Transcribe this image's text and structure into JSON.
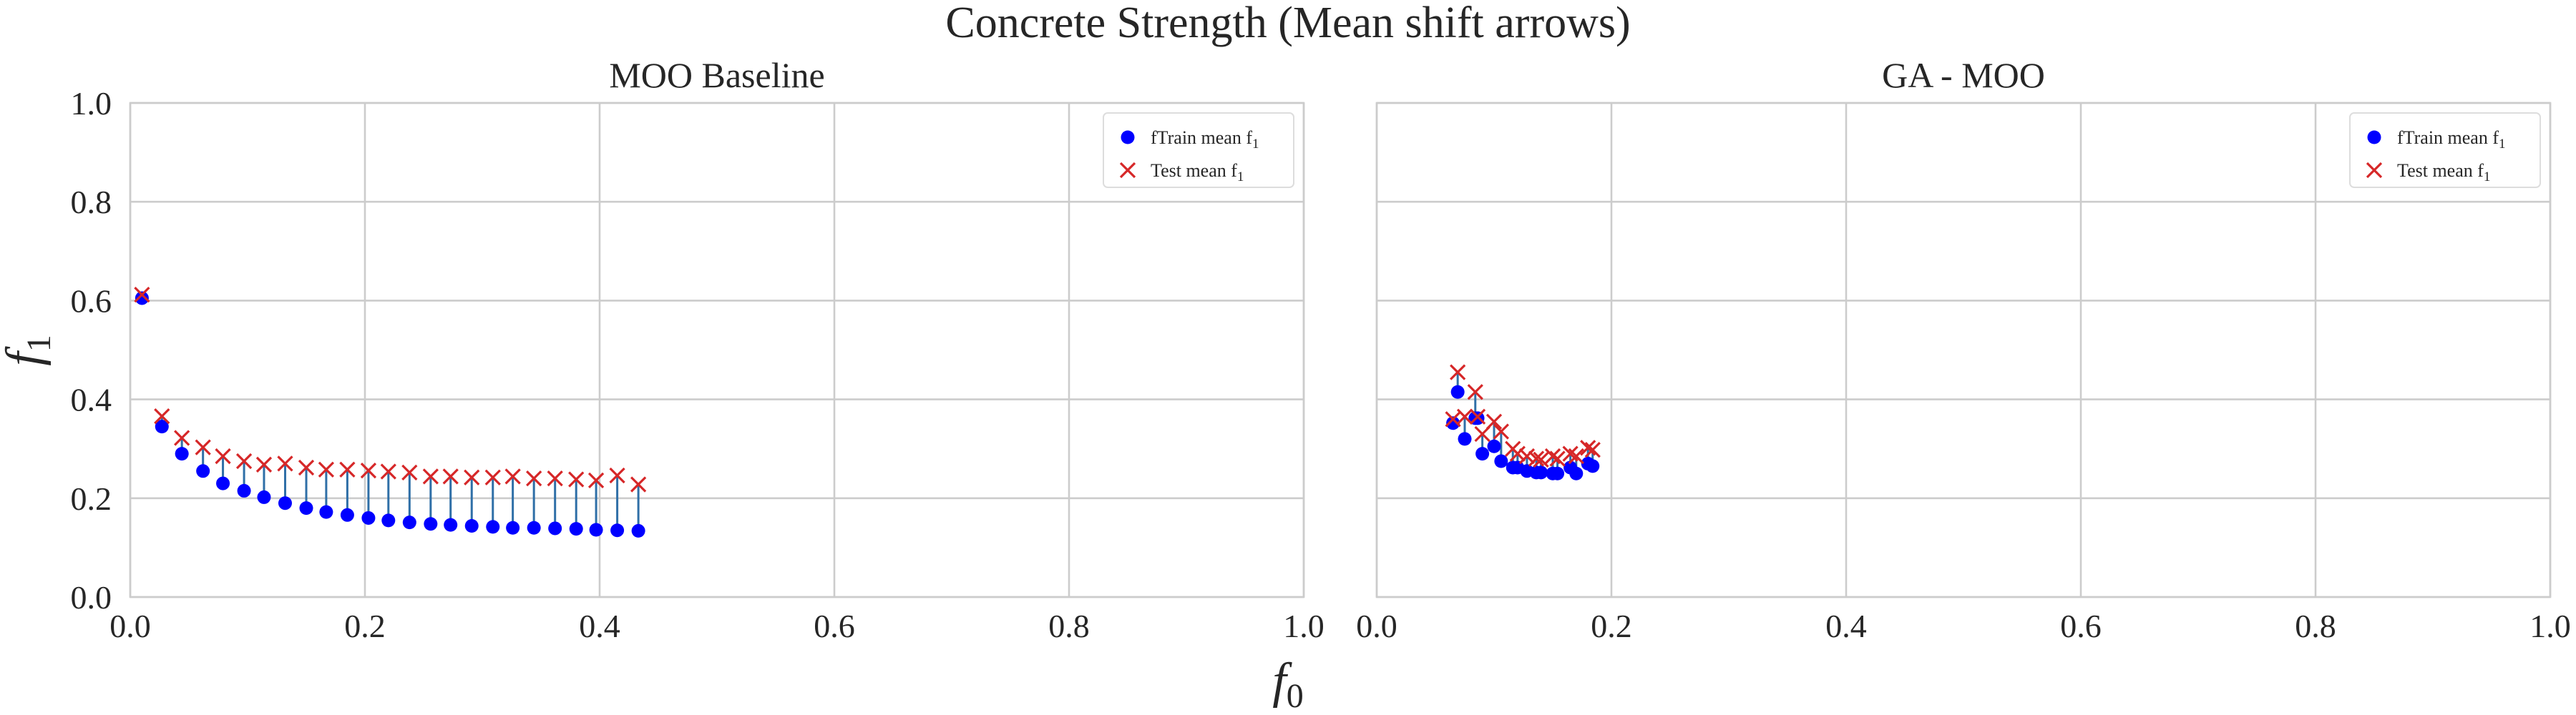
{
  "figure": {
    "title": "Concrete Strength (Mean shift arrows)",
    "xlabel_base": "f",
    "xlabel_sub": "0",
    "ylabel_base": "f",
    "ylabel_sub": "1"
  },
  "colors": {
    "train": "#0000ff",
    "test": "#d62728",
    "arrow": "#2f6fa7",
    "grid": "#cccccc"
  },
  "chart_data": [
    {
      "type": "scatter",
      "title": "MOO Baseline",
      "xlim": [
        0,
        1
      ],
      "ylim": [
        0,
        1
      ],
      "x_ticks": [
        "0.0",
        "0.2",
        "0.4",
        "0.6",
        "0.8",
        "1.0"
      ],
      "y_ticks": [
        "0.0",
        "0.2",
        "0.4",
        "0.6",
        "0.8",
        "1.0"
      ],
      "grid": true,
      "legend_placement": "top-right",
      "series": [
        {
          "name": "fTrain mean f1",
          "legend_base": "fTrain mean f",
          "legend_sub": "1",
          "marker": "circle",
          "x": [
            0.01,
            0.027,
            0.044,
            0.062,
            0.079,
            0.097,
            0.114,
            0.132,
            0.15,
            0.167,
            0.185,
            0.203,
            0.22,
            0.238,
            0.256,
            0.273,
            0.291,
            0.309,
            0.326,
            0.344,
            0.362,
            0.38,
            0.397,
            0.415,
            0.433
          ],
          "y": [
            0.605,
            0.345,
            0.29,
            0.255,
            0.23,
            0.215,
            0.202,
            0.19,
            0.18,
            0.172,
            0.166,
            0.16,
            0.155,
            0.151,
            0.148,
            0.146,
            0.144,
            0.142,
            0.14,
            0.14,
            0.139,
            0.138,
            0.136,
            0.135,
            0.134
          ]
        },
        {
          "name": "Test mean f1",
          "legend_base": "Test mean f",
          "legend_sub": "1",
          "marker": "x",
          "x": [
            0.01,
            0.027,
            0.044,
            0.062,
            0.079,
            0.097,
            0.114,
            0.132,
            0.15,
            0.167,
            0.185,
            0.203,
            0.22,
            0.238,
            0.256,
            0.273,
            0.291,
            0.309,
            0.326,
            0.344,
            0.362,
            0.38,
            0.397,
            0.415,
            0.433
          ],
          "y": [
            0.612,
            0.366,
            0.322,
            0.303,
            0.285,
            0.275,
            0.268,
            0.27,
            0.262,
            0.258,
            0.258,
            0.256,
            0.254,
            0.252,
            0.244,
            0.244,
            0.242,
            0.242,
            0.244,
            0.24,
            0.24,
            0.238,
            0.236,
            0.246,
            0.228
          ]
        }
      ]
    },
    {
      "type": "scatter",
      "title": "GA - MOO",
      "xlim": [
        0,
        1
      ],
      "ylim": [
        0,
        1
      ],
      "x_ticks": [
        "0.0",
        "0.2",
        "0.4",
        "0.6",
        "0.8",
        "1.0"
      ],
      "y_ticks": [
        "0.0",
        "0.2",
        "0.4",
        "0.6",
        "0.8",
        "1.0"
      ],
      "grid": true,
      "legend_placement": "top-right",
      "series": [
        {
          "name": "fTrain mean f1",
          "legend_base": "fTrain mean f",
          "legend_sub": "1",
          "marker": "circle",
          "x": [
            0.065,
            0.069,
            0.075,
            0.084,
            0.086,
            0.09,
            0.1,
            0.106,
            0.116,
            0.12,
            0.128,
            0.136,
            0.14,
            0.15,
            0.154,
            0.165,
            0.17,
            0.18,
            0.184
          ],
          "y": [
            0.352,
            0.415,
            0.32,
            0.362,
            0.362,
            0.29,
            0.305,
            0.275,
            0.262,
            0.262,
            0.255,
            0.252,
            0.252,
            0.25,
            0.25,
            0.262,
            0.25,
            0.27,
            0.265
          ]
        },
        {
          "name": "Test mean f1",
          "legend_base": "Test mean f",
          "legend_sub": "1",
          "marker": "x",
          "x": [
            0.065,
            0.069,
            0.075,
            0.084,
            0.086,
            0.09,
            0.1,
            0.106,
            0.116,
            0.12,
            0.128,
            0.136,
            0.14,
            0.15,
            0.154,
            0.165,
            0.17,
            0.18,
            0.184
          ],
          "y": [
            0.36,
            0.455,
            0.365,
            0.415,
            0.365,
            0.33,
            0.355,
            0.335,
            0.3,
            0.29,
            0.285,
            0.28,
            0.278,
            0.285,
            0.28,
            0.29,
            0.285,
            0.302,
            0.298
          ]
        }
      ]
    }
  ]
}
